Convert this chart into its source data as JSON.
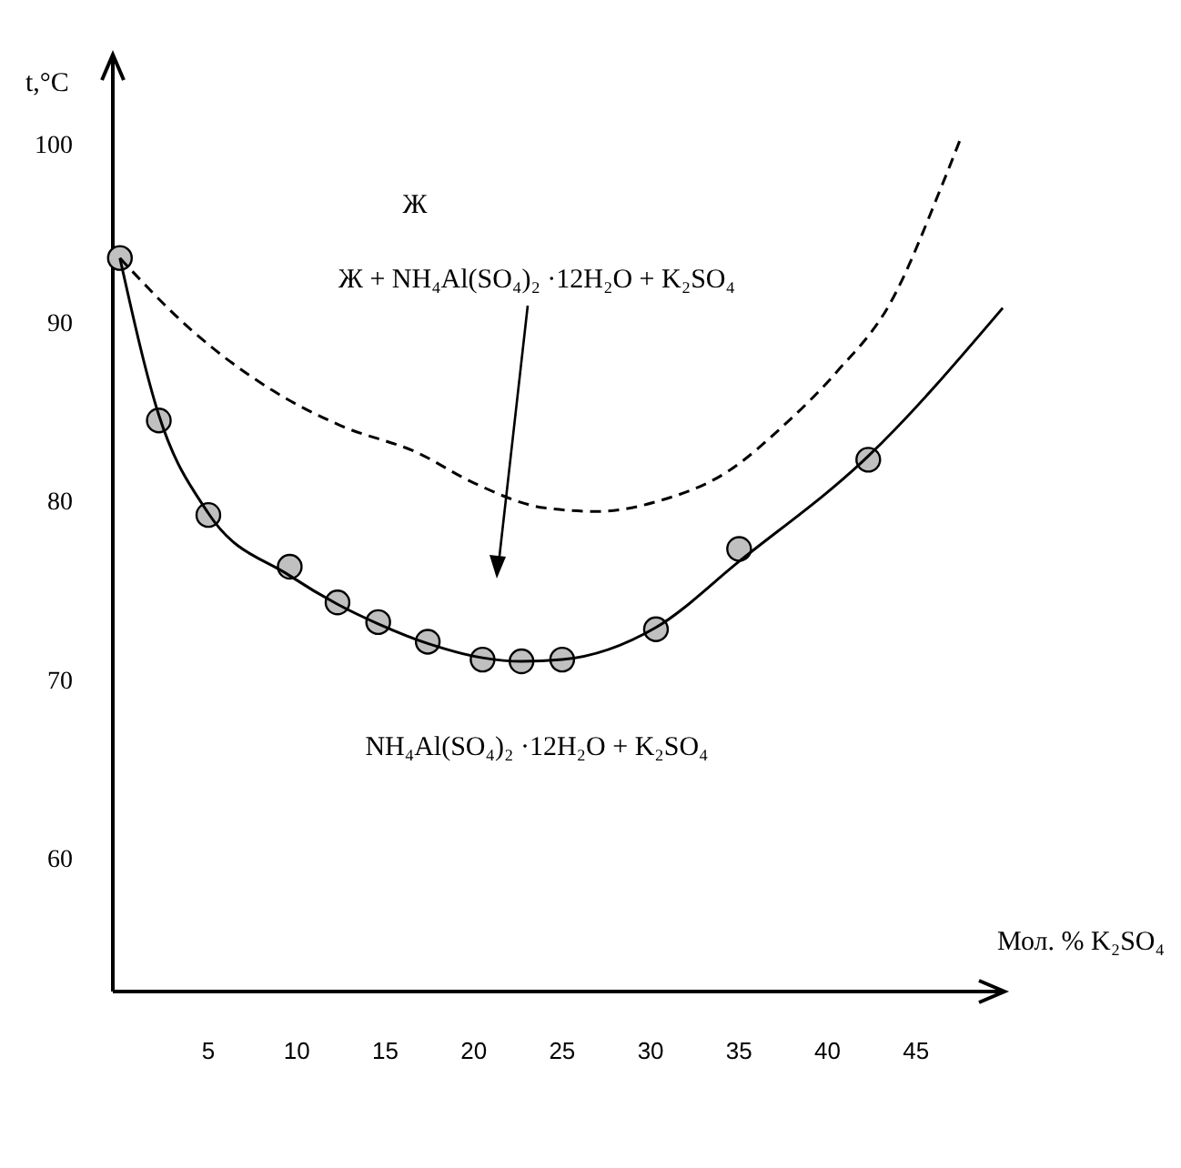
{
  "chart_data": {
    "type": "scatter",
    "xlabel": "Мол. % K₂SO₄",
    "ylabel": "t,°C",
    "xlim": [
      -0.4,
      50
    ],
    "ylim": [
      52.5,
      105
    ],
    "xticks": [
      5,
      10,
      15,
      20,
      25,
      30,
      35,
      40,
      45
    ],
    "yticks": [
      60,
      70,
      80,
      90,
      100
    ],
    "grid": false,
    "series": [
      {
        "type": "scatter",
        "color": "#c0c0c0",
        "marker": "circle",
        "x": [
          0,
          2.2,
          5,
          9.6,
          12.3,
          14.6,
          17.4,
          20.5,
          22.7,
          25,
          30.3,
          35,
          42.3
        ],
        "values": [
          93.6,
          84.5,
          79.2,
          76.3,
          74.3,
          73.2,
          72.1,
          71.1,
          71,
          71.1,
          72.8,
          77.3,
          82.3
        ]
      },
      {
        "type": "line",
        "color": "#000000",
        "line_style": "solid",
        "x": [
          0,
          2.2,
          5,
          9.6,
          12.3,
          14.6,
          17.4,
          20.5,
          22.7,
          25,
          30.3,
          35,
          42.3,
          49.9
        ],
        "values": [
          93.6,
          84.8,
          79.3,
          75.8,
          74.2,
          73.1,
          72,
          71.2,
          71,
          71.1,
          72.9,
          76.6,
          82.5,
          90.8
        ]
      },
      {
        "type": "line",
        "color": "#000000",
        "line_style": "dashed",
        "x": [
          0,
          4,
          8.6,
          12.5,
          16.8,
          20,
          24,
          27,
          30.5,
          34.3,
          37.5,
          40.5,
          43.5,
          46.6,
          47.6
        ],
        "values": [
          93.6,
          89.6,
          86.2,
          84.2,
          82.7,
          81,
          79.6,
          79.4,
          80,
          81.6,
          84.2,
          87.2,
          91,
          98,
          100.5
        ]
      }
    ],
    "annotations": [
      "Ж",
      "Ж + NH₄Al(SO₄)₂ ·12H₂O + K₂SO₄",
      "NH₄Al(SO₄)₂ ·12H₂O + K₂SO₄"
    ]
  }
}
